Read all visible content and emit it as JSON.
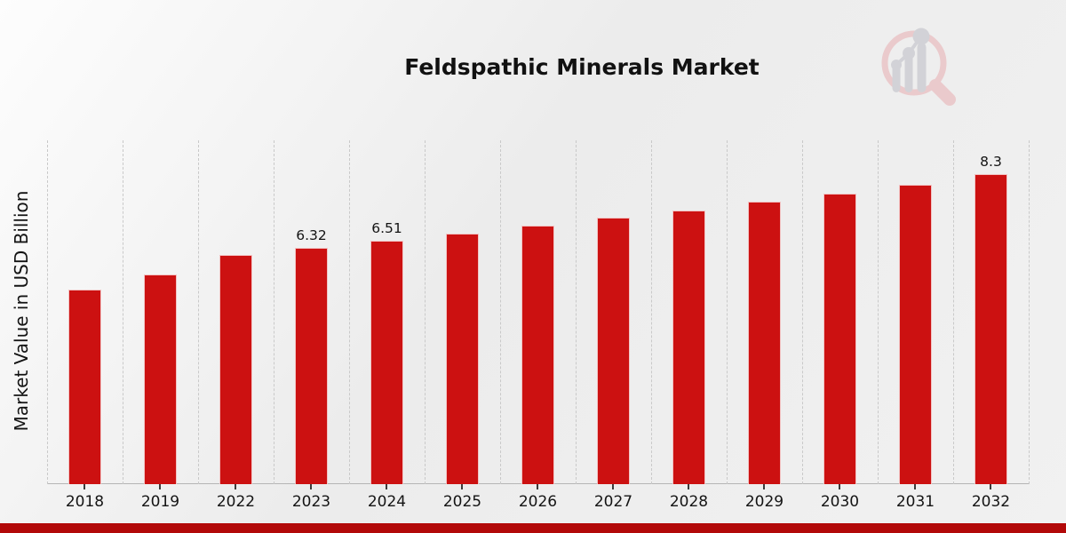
{
  "page": {
    "footer_accent_color": "#b20909",
    "background_color": "#ededed",
    "logo_icon": "magnifier-bar-chart-icon",
    "logo_rim_color": "#eac7c9",
    "logo_bar_color": "#d0d0d5"
  },
  "chart_data": {
    "type": "bar",
    "title": "Feldspathic Minerals Market",
    "xlabel": "",
    "ylabel": "Market Value in USD Billion",
    "categories": [
      "2018",
      "2019",
      "2022",
      "2023",
      "2024",
      "2025",
      "2026",
      "2027",
      "2028",
      "2029",
      "2030",
      "2031",
      "2032"
    ],
    "values": [
      5.2,
      5.6,
      6.13,
      6.32,
      6.51,
      6.71,
      6.91,
      7.12,
      7.33,
      7.55,
      7.78,
      8.01,
      8.3
    ],
    "data_labels": {
      "2023": "6.32",
      "2024": "6.51",
      "2032": "8.3"
    },
    "bar_color": "#cc1111",
    "ylim": [
      0,
      9.2
    ],
    "grid": "vertical-dashed-between-categories",
    "legend": "none",
    "tick_marks": "below-each-bar"
  }
}
